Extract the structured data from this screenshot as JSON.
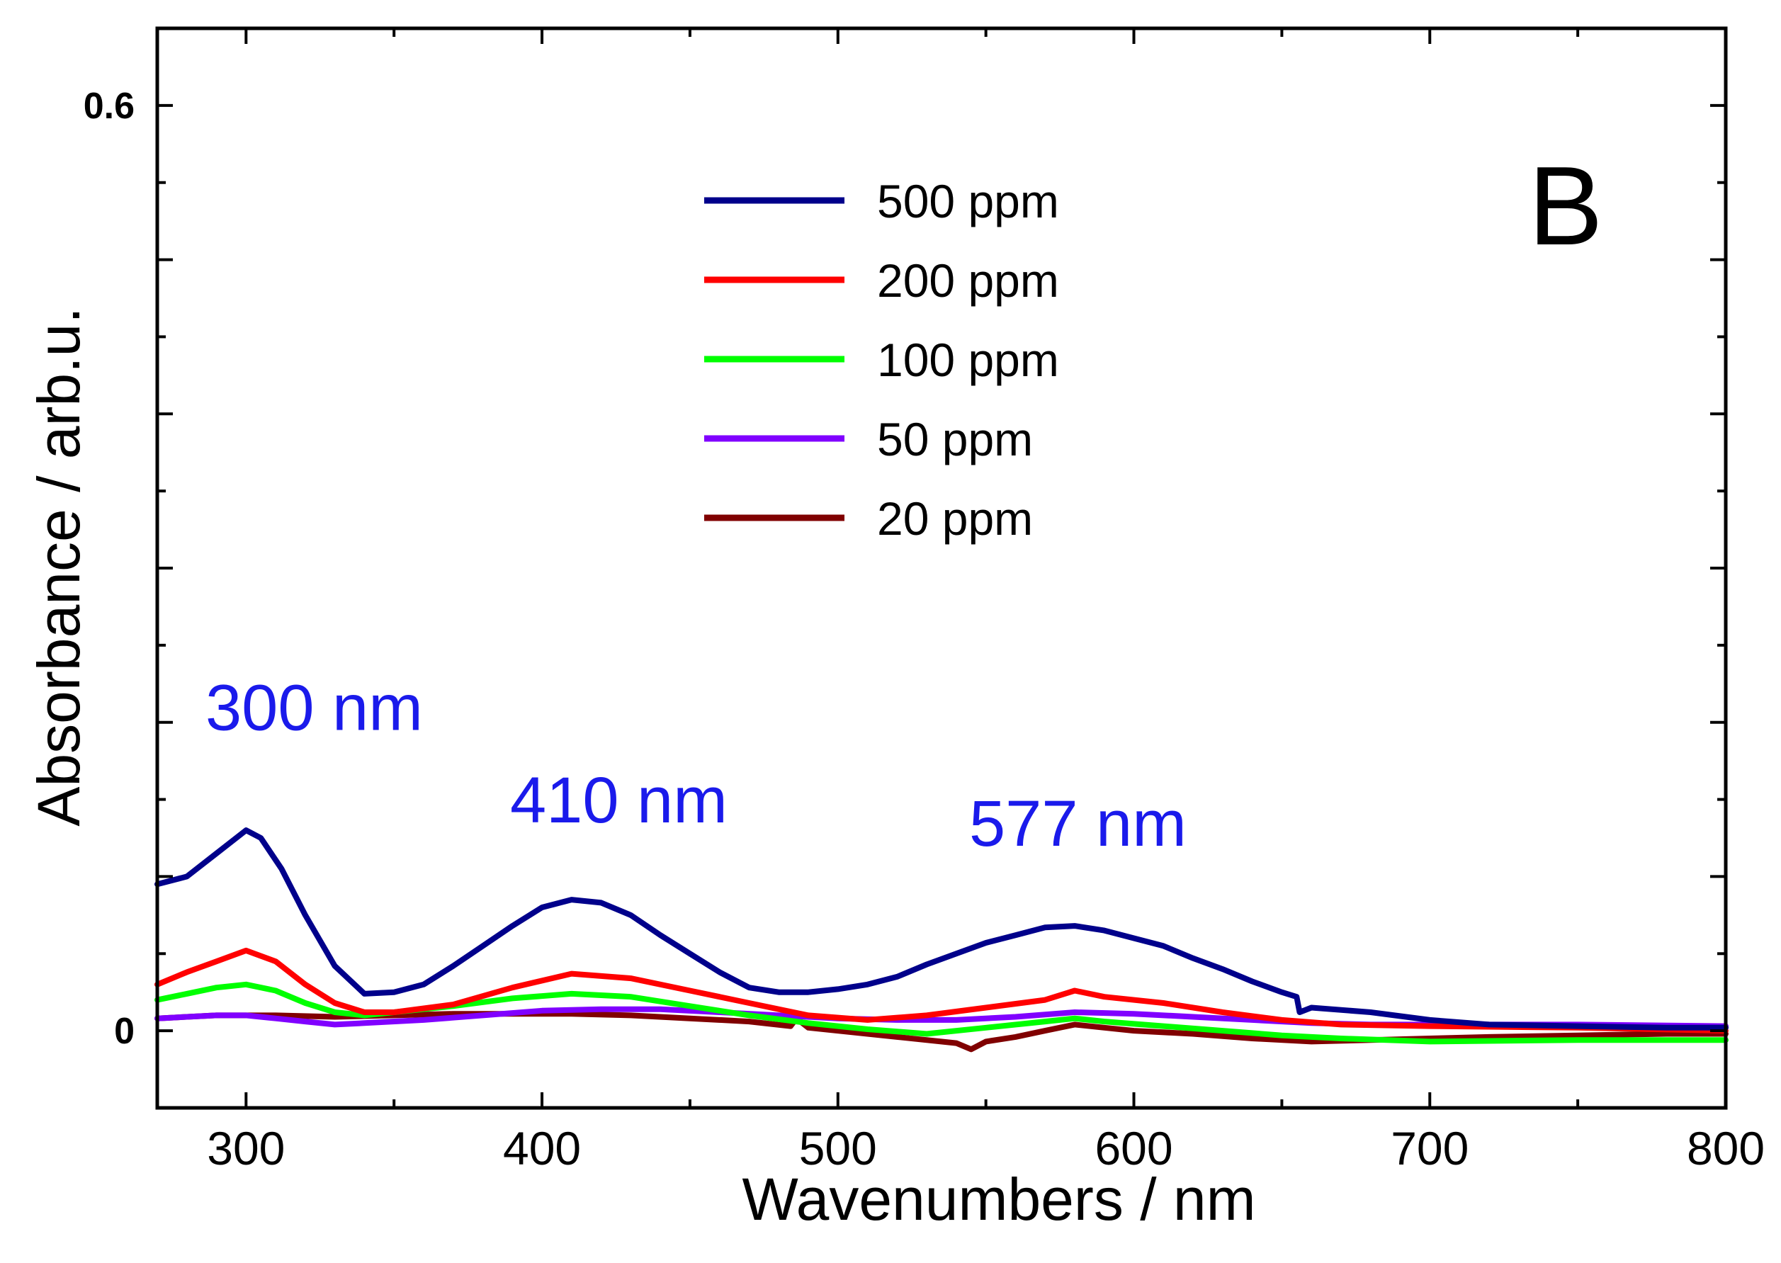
{
  "chart_data": {
    "type": "line",
    "title": "",
    "panel_label": "B",
    "xlabel": "Wavenumbers / nm",
    "ylabel": "Absorbance / arb.u.",
    "xlim": [
      270,
      800
    ],
    "ylim": [
      -0.05,
      0.65
    ],
    "x_ticks": [
      300,
      400,
      500,
      600,
      700,
      800
    ],
    "x_tick_labels": [
      "300",
      "400",
      "500",
      "600",
      "700",
      "800"
    ],
    "x_minor_ticks": [
      350,
      450,
      550,
      650,
      750
    ],
    "y_ticks": [
      0,
      0.6
    ],
    "y_tick_labels": [
      "0",
      "0.6"
    ],
    "y_minor_ticks": [
      0.05,
      0.1,
      0.15,
      0.2,
      0.25,
      0.3,
      0.35,
      0.4,
      0.45,
      0.5,
      0.55
    ],
    "legend_position": "top-center",
    "annotations": [
      {
        "text": "300 nm",
        "x": 300,
        "y": 0.195,
        "color": "#1a1aeb"
      },
      {
        "text": "410 nm",
        "x": 410,
        "y": 0.135,
        "color": "#1a1aeb"
      },
      {
        "text": "577 nm",
        "x": 577,
        "y": 0.12,
        "color": "#1a1aeb"
      }
    ],
    "series": [
      {
        "name": "500 ppm",
        "color": "#00008b",
        "x": [
          270,
          280,
          290,
          300,
          305,
          312,
          320,
          330,
          340,
          350,
          360,
          370,
          380,
          390,
          400,
          410,
          420,
          430,
          440,
          450,
          460,
          470,
          480,
          490,
          500,
          510,
          520,
          530,
          540,
          550,
          560,
          570,
          580,
          590,
          600,
          610,
          620,
          630,
          640,
          650,
          655,
          656,
          660,
          680,
          700,
          720,
          750,
          780,
          800
        ],
        "values": [
          0.095,
          0.1,
          0.115,
          0.13,
          0.125,
          0.105,
          0.075,
          0.042,
          0.024,
          0.025,
          0.03,
          0.042,
          0.055,
          0.068,
          0.08,
          0.085,
          0.083,
          0.075,
          0.062,
          0.05,
          0.038,
          0.028,
          0.025,
          0.025,
          0.027,
          0.03,
          0.035,
          0.043,
          0.05,
          0.057,
          0.062,
          0.067,
          0.068,
          0.065,
          0.06,
          0.055,
          0.047,
          0.04,
          0.032,
          0.025,
          0.022,
          0.012,
          0.015,
          0.012,
          0.007,
          0.004,
          0.003,
          0.002,
          0.002
        ]
      },
      {
        "name": "200 ppm",
        "color": "#ff0000",
        "x": [
          270,
          280,
          290,
          300,
          310,
          320,
          330,
          340,
          350,
          370,
          390,
          410,
          430,
          450,
          470,
          490,
          510,
          530,
          550,
          570,
          580,
          590,
          610,
          630,
          650,
          670,
          700,
          750,
          800
        ],
        "values": [
          0.03,
          0.038,
          0.045,
          0.052,
          0.045,
          0.03,
          0.018,
          0.012,
          0.012,
          0.017,
          0.028,
          0.037,
          0.034,
          0.026,
          0.018,
          0.01,
          0.007,
          0.01,
          0.015,
          0.02,
          0.026,
          0.022,
          0.018,
          0.012,
          0.007,
          0.004,
          0.003,
          0.002,
          0.0
        ]
      },
      {
        "name": "100 ppm",
        "color": "#00ff00",
        "x": [
          270,
          280,
          290,
          300,
          310,
          320,
          330,
          340,
          350,
          370,
          390,
          410,
          430,
          450,
          470,
          490,
          510,
          530,
          550,
          570,
          580,
          590,
          610,
          630,
          650,
          670,
          700,
          750,
          800
        ],
        "values": [
          0.02,
          0.024,
          0.028,
          0.03,
          0.026,
          0.018,
          0.012,
          0.01,
          0.012,
          0.016,
          0.021,
          0.024,
          0.022,
          0.016,
          0.01,
          0.005,
          0.001,
          -0.002,
          0.002,
          0.006,
          0.008,
          0.006,
          0.003,
          0.0,
          -0.003,
          -0.005,
          -0.007,
          -0.006,
          -0.006
        ]
      },
      {
        "name": "50 ppm",
        "color": "#8000ff",
        "x": [
          270,
          290,
          300,
          310,
          320,
          330,
          340,
          360,
          380,
          400,
          420,
          440,
          460,
          480,
          500,
          520,
          540,
          560,
          580,
          600,
          620,
          640,
          660,
          680,
          700,
          750,
          800
        ],
        "values": [
          0.008,
          0.01,
          0.01,
          0.008,
          0.006,
          0.004,
          0.005,
          0.007,
          0.01,
          0.013,
          0.014,
          0.014,
          0.012,
          0.01,
          0.008,
          0.007,
          0.007,
          0.009,
          0.012,
          0.011,
          0.009,
          0.007,
          0.005,
          0.004,
          0.004,
          0.004,
          0.003
        ]
      },
      {
        "name": "20 ppm",
        "color": "#800000",
        "x": [
          270,
          290,
          310,
          330,
          350,
          370,
          390,
          410,
          430,
          450,
          470,
          484,
          486,
          490,
          500,
          520,
          540,
          545,
          550,
          560,
          570,
          580,
          590,
          600,
          620,
          640,
          660,
          680,
          700,
          720,
          750,
          780,
          800
        ],
        "values": [
          0.008,
          0.01,
          0.01,
          0.009,
          0.01,
          0.011,
          0.011,
          0.011,
          0.01,
          0.008,
          0.006,
          0.003,
          0.008,
          0.002,
          0.0,
          -0.004,
          -0.008,
          -0.012,
          -0.007,
          -0.004,
          0.0,
          0.004,
          0.002,
          0.0,
          -0.002,
          -0.005,
          -0.007,
          -0.006,
          -0.005,
          -0.004,
          -0.003,
          -0.002,
          -0.002
        ]
      }
    ]
  }
}
